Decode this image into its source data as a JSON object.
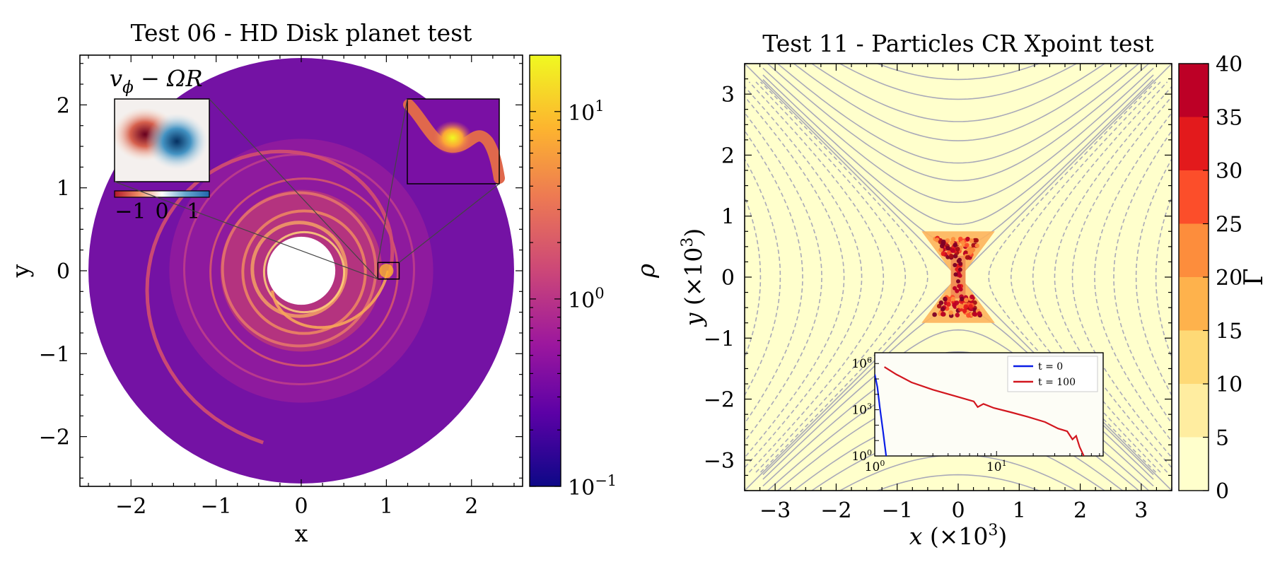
{
  "chart_data": [
    {
      "type": "heatmap",
      "title": "Test 06 - HD Disk planet test",
      "xlabel": "x",
      "ylabel": "y",
      "xlim": [
        -2.6,
        2.6
      ],
      "ylim": [
        -2.6,
        2.6
      ],
      "xticks": [
        "−2",
        "−1",
        "0",
        "1",
        "2"
      ],
      "xtick_values": [
        -2,
        -1,
        0,
        1,
        2
      ],
      "yticks": [
        "2",
        "1",
        "0",
        "−1",
        "−2"
      ],
      "ytick_values": [
        2,
        1,
        0,
        -1,
        -2
      ],
      "disk": {
        "r_inner": 0.4,
        "r_outer": 2.5,
        "planet_x": 1.0,
        "planet_y": 0.0
      },
      "colorbar": {
        "label": "ρ",
        "scale": "log",
        "range": [
          0.1,
          20
        ],
        "ticks": [
          {
            "base": "10",
            "exp": "1",
            "value": 10
          },
          {
            "base": "10",
            "exp": "0",
            "value": 1
          },
          {
            "base": "10",
            "exp": "−1",
            "value": 0.1
          }
        ],
        "colors": [
          "#0d0887",
          "#5c01a6",
          "#9c179e",
          "#cc4778",
          "#ed7953",
          "#fdb42f",
          "#f0f921"
        ]
      },
      "inset_velocity": {
        "label": "vϕ − ΩR",
        "label_main": "v",
        "label_sub": "ϕ",
        "label_rest": " − ΩR",
        "colorbar_ticks": [
          "−1",
          "0",
          "1"
        ],
        "colorbar_range": [
          -1.5,
          1.5
        ]
      },
      "inset_zoom": {
        "x_range": [
          0.9,
          1.15
        ],
        "y_range": [
          -0.1,
          0.1
        ]
      }
    },
    {
      "type": "scatter",
      "title": "Test 11 - Particles CR Xpoint test",
      "xlabel": "x (×10³)",
      "xlabel_parts": {
        "var": "x",
        "rest": " (×10",
        "sup": "3",
        "end": ")"
      },
      "ylabel": "y (×10³)",
      "ylabel_parts": {
        "var": "y",
        "rest": " (×10",
        "sup": "3",
        "end": ")"
      },
      "xlim": [
        -3.5,
        3.5
      ],
      "ylim": [
        -3.5,
        3.5
      ],
      "xticks": [
        "−3",
        "−2",
        "−1",
        "0",
        "1",
        "2",
        "3"
      ],
      "xtick_values": [
        -3,
        -2,
        -1,
        0,
        1,
        2,
        3
      ],
      "yticks": [
        "3",
        "2",
        "1",
        "0",
        "−1",
        "−2",
        "−3"
      ],
      "ytick_values": [
        3,
        2,
        1,
        0,
        -1,
        -2,
        -3
      ],
      "contour_levels": [
        0.25,
        0.75,
        1.5,
        2.5,
        3.5,
        5,
        6.5,
        8.5,
        10.5
      ],
      "colorbar": {
        "label": "Γ",
        "ticks": [
          "40",
          "35",
          "30",
          "25",
          "20",
          "15",
          "10",
          "5",
          "0"
        ],
        "tick_values": [
          40,
          35,
          30,
          25,
          20,
          15,
          10,
          5,
          0
        ],
        "bins": [
          0,
          5,
          10,
          15,
          20,
          25,
          30,
          35,
          40
        ],
        "colors": [
          "#ffffcc",
          "#ffeda0",
          "#fed976",
          "#feb24c",
          "#fd8d3c",
          "#fc4e2a",
          "#e31a1c",
          "#bd0026",
          "#800026"
        ]
      },
      "inset_spectrum": {
        "type": "line",
        "xscale": "log",
        "yscale": "log",
        "xlim": [
          1,
          75
        ],
        "ylim": [
          1,
          5000000
        ],
        "xticks": [
          {
            "base": "10",
            "exp": "0",
            "value": 1
          },
          {
            "base": "10",
            "exp": "1",
            "value": 10
          }
        ],
        "yticks": [
          {
            "base": "10",
            "exp": "6",
            "value": 1000000
          },
          {
            "base": "10",
            "exp": "3",
            "value": 1000
          },
          {
            "base": "10",
            "exp": "0",
            "value": 1
          }
        ],
        "series": [
          {
            "name": "t = 0",
            "color": "#0a1ee6",
            "x": [
              1.0,
              1.05,
              1.1,
              1.17,
              1.24
            ],
            "y": [
              200000,
              30000,
              1500,
              40,
              1
            ]
          },
          {
            "name": "t = 100",
            "color": "#d2161e",
            "x": [
              1.2,
              1.5,
              2.0,
              3.0,
              4.5,
              6.5,
              7.0,
              7.8,
              9.5,
              13,
              18,
              25,
              32,
              38,
              42,
              45,
              48,
              52
            ],
            "y": [
              600000,
              200000,
              60000,
              20000,
              8000,
              3500,
              1500,
              2400,
              1300,
              700,
              350,
              160,
              60,
              40,
              12,
              20,
              4,
              1
            ]
          }
        ]
      }
    }
  ]
}
